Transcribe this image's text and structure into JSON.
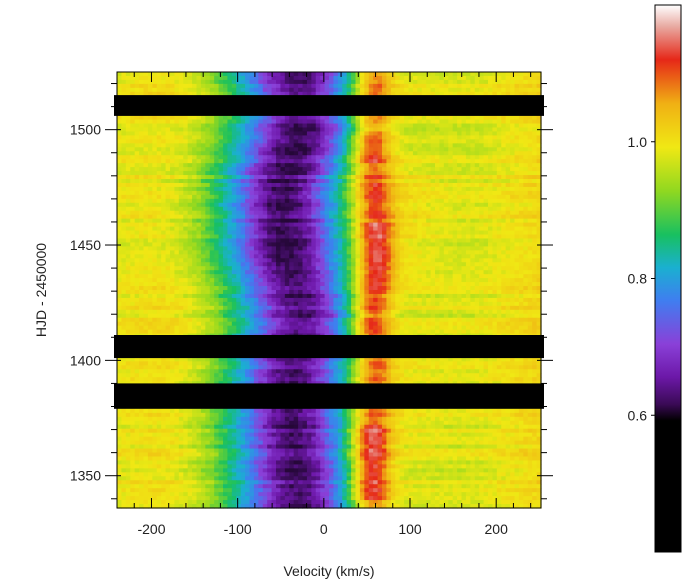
{
  "chart_data": [
    {
      "type": "heatmap",
      "title": "",
      "xlabel": "Velocity (km/s)",
      "ylabel": "HJD - 2450000",
      "xlim": [
        -240,
        252
      ],
      "ylim": [
        1336,
        1525
      ],
      "x_ticks": [
        -200,
        -100,
        0,
        100,
        200
      ],
      "x_tick_labels": [
        "-200",
        "-100",
        "0",
        "100",
        "200"
      ],
      "y_ticks": [
        1350,
        1400,
        1450,
        1500
      ],
      "y_tick_labels": [
        "1350",
        "1400",
        "1450",
        "1500"
      ],
      "data_gaps_hjd": [
        [
          1506,
          1515
        ],
        [
          1401,
          1411
        ],
        [
          1379,
          1390
        ]
      ],
      "absorption_core": [
        {
          "hjd": 1345,
          "v": -25
        },
        {
          "hjd": 1365,
          "v": -30
        },
        {
          "hjd": 1385,
          "v": -35
        },
        {
          "hjd": 1420,
          "v": -20
        },
        {
          "hjd": 1445,
          "v": -40
        },
        {
          "hjd": 1475,
          "v": -45
        },
        {
          "hjd": 1500,
          "v": -20
        },
        {
          "hjd": 1520,
          "v": -25
        }
      ],
      "emission_peak": [
        {
          "hjd": 1345,
          "v": 55
        },
        {
          "hjd": 1365,
          "v": 55
        },
        {
          "hjd": 1398,
          "v": 58
        },
        {
          "hjd": 1420,
          "v": 55
        },
        {
          "hjd": 1445,
          "v": 60
        },
        {
          "hjd": 1490,
          "v": 55
        },
        {
          "hjd": 1520,
          "v": 58
        }
      ]
    },
    {
      "type": "colorbar",
      "range": [
        0.4,
        1.2
      ],
      "ticks": [
        0.6,
        0.8,
        1.0
      ],
      "tick_labels": [
        "0.6",
        "0.8",
        "1.0"
      ],
      "colors": [
        "#000000",
        "#7a00b8",
        "#2e7cf6",
        "#15c060",
        "#f0e814",
        "#e01818",
        "#ffffff"
      ]
    }
  ]
}
